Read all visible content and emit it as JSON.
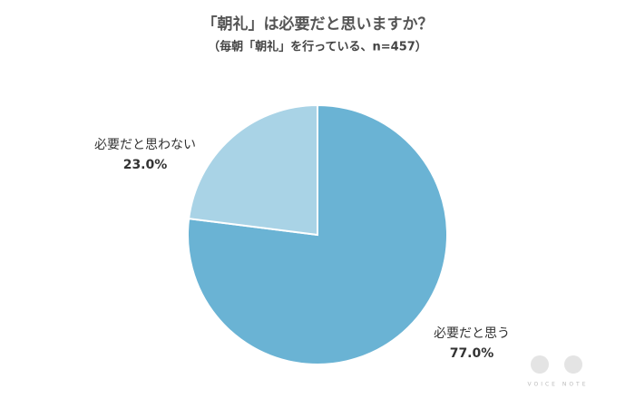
{
  "chart_data": {
    "type": "pie",
    "title": "「朝礼」は必要だと思いますか？",
    "subtitle": "（毎朝「朝礼」を行っている、n=457）",
    "categories": [
      "必要だと思う",
      "必要だと思わない"
    ],
    "values": [
      77.0,
      23.0
    ],
    "value_labels": [
      "77.0%",
      "23.0%"
    ],
    "colors": [
      "#6ab3d4",
      "#a9d3e6"
    ],
    "watermark": "VOICE NOTE"
  }
}
